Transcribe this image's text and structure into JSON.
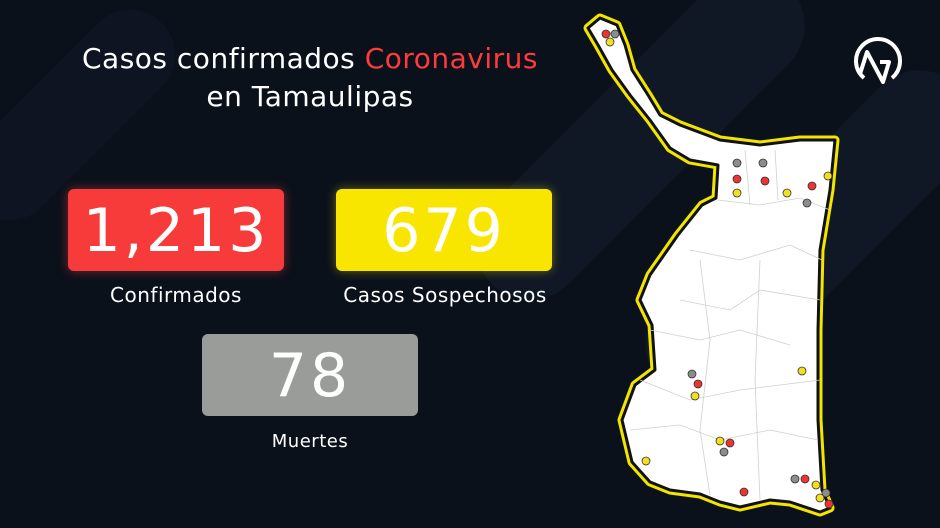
{
  "title": {
    "line1_prefix": "Casos confirmados",
    "line1_highlight": "Coronavirus",
    "line2": "en Tamaulipas"
  },
  "stats": {
    "confirmed": {
      "value": "1,213",
      "label": "Confirmados",
      "color": "#f73b3b"
    },
    "suspected": {
      "value": "679",
      "label": "Casos Sospechosos",
      "color": "#f8e600"
    },
    "deaths": {
      "value": "78",
      "label": "Muertes",
      "color": "#9a9c9a"
    }
  },
  "map": {
    "region": "Tamaulipas",
    "marker_colors": {
      "confirmed": "#ee3333",
      "suspected": "#f2e020",
      "deaths": "#8c8c8c"
    },
    "border_color": "#f2e500"
  },
  "logo": {
    "icon": "mountain-circle-logo"
  }
}
